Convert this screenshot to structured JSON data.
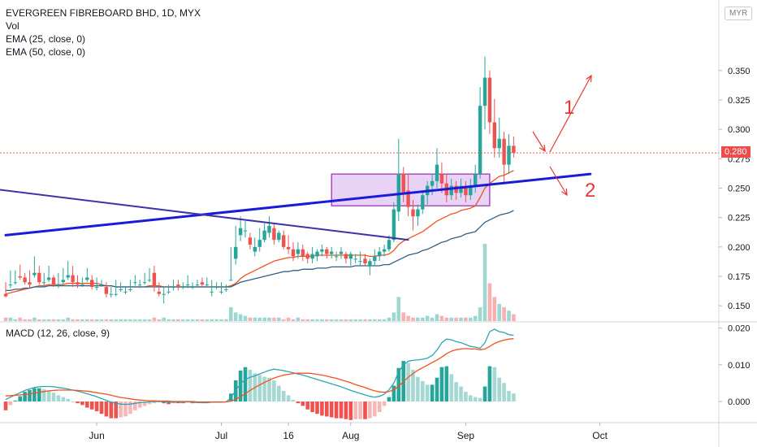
{
  "legend": {
    "title": "EVERGREEN FIBREBOARD BHD, 1D, MYX",
    "vol": "Vol",
    "ema25": "EMA (25, close, 0)",
    "ema50": "EMA (50, close, 0)",
    "macd": "MACD (12, 26, close, 9)"
  },
  "currency_badge": "MYR",
  "last_price_label": "0.280",
  "colors": {
    "up": "#26a69a",
    "down": "#ef5350",
    "ema25": "#f4511e",
    "ema50": "#2f5f8a",
    "macd_line": "#2ea5b5",
    "signal_line": "#f4511e",
    "trendline_blue": "#1a1adb",
    "trendline_purple": "#3d32a8",
    "box_fill": "#d8b4f0",
    "box_stroke": "#9c27b0",
    "annotation": "#e53935"
  },
  "annotations": {
    "label_1": "1",
    "label_2": "2"
  },
  "chart_data": [
    {
      "type": "candlestick",
      "title": "EVERGREEN FIBREBOARD BHD, 1D, MYX",
      "x_ticks": [
        "Jun",
        "Jul",
        "16",
        "Aug",
        "Sep",
        "Oct"
      ],
      "y_ticks": [
        "0.350",
        "0.325",
        "0.300",
        "0.275",
        "0.250",
        "0.225",
        "0.200",
        "0.175",
        "0.150"
      ],
      "y_range": [
        0.137,
        0.372
      ],
      "last_price": 0.28,
      "candles": [
        [
          0.16,
          0.17,
          0.158,
          0.157
        ],
        [
          0.168,
          0.18,
          0.168,
          0.165
        ],
        [
          0.17,
          0.18,
          0.17,
          0.168
        ],
        [
          0.175,
          0.185,
          0.174,
          0.172
        ],
        [
          0.174,
          0.178,
          0.17,
          0.168
        ],
        [
          0.17,
          0.18,
          0.168,
          0.165
        ],
        [
          0.176,
          0.192,
          0.178,
          0.174
        ],
        [
          0.178,
          0.184,
          0.17,
          0.168
        ],
        [
          0.17,
          0.178,
          0.17,
          0.167
        ],
        [
          0.172,
          0.184,
          0.174,
          0.17
        ],
        [
          0.174,
          0.176,
          0.168,
          0.166
        ],
        [
          0.168,
          0.178,
          0.168,
          0.165
        ],
        [
          0.17,
          0.182,
          0.172,
          0.168
        ],
        [
          0.174,
          0.188,
          0.176,
          0.172
        ],
        [
          0.176,
          0.184,
          0.17,
          0.166
        ],
        [
          0.17,
          0.176,
          0.168,
          0.165
        ],
        [
          0.168,
          0.174,
          0.168,
          0.166
        ],
        [
          0.172,
          0.182,
          0.174,
          0.17
        ],
        [
          0.172,
          0.176,
          0.166,
          0.164
        ],
        [
          0.166,
          0.174,
          0.166,
          0.163
        ],
        [
          0.168,
          0.172,
          0.168,
          0.166
        ],
        [
          0.166,
          0.17,
          0.16,
          0.157
        ],
        [
          0.16,
          0.166,
          0.16,
          0.157
        ],
        [
          0.16,
          0.172,
          0.16,
          0.158
        ],
        [
          0.164,
          0.17,
          0.164,
          0.162
        ],
        [
          0.162,
          0.166,
          0.162,
          0.16
        ],
        [
          0.164,
          0.172,
          0.164,
          0.162
        ],
        [
          0.17,
          0.176,
          0.17,
          0.167
        ],
        [
          0.168,
          0.172,
          0.168,
          0.165
        ],
        [
          0.17,
          0.178,
          0.17,
          0.168
        ],
        [
          0.172,
          0.182,
          0.172,
          0.17
        ],
        [
          0.178,
          0.184,
          0.166,
          0.162
        ],
        [
          0.162,
          0.17,
          0.16,
          0.158
        ],
        [
          0.16,
          0.166,
          0.16,
          0.152
        ],
        [
          0.162,
          0.168,
          0.162,
          0.16
        ],
        [
          0.166,
          0.172,
          0.166,
          0.163
        ],
        [
          0.168,
          0.172,
          0.166,
          0.163
        ],
        [
          0.166,
          0.17,
          0.166,
          0.164
        ],
        [
          0.168,
          0.176,
          0.168,
          0.165
        ],
        [
          0.166,
          0.17,
          0.166,
          0.164
        ],
        [
          0.168,
          0.172,
          0.168,
          0.166
        ],
        [
          0.17,
          0.174,
          0.168,
          0.166
        ],
        [
          0.168,
          0.174,
          0.168,
          0.166
        ],
        [
          0.162,
          0.172,
          0.162,
          0.158
        ],
        [
          0.166,
          0.17,
          0.166,
          0.164
        ],
        [
          0.162,
          0.17,
          0.162,
          0.16
        ],
        [
          0.164,
          0.168,
          0.164,
          0.162
        ],
        [
          0.172,
          0.2,
          0.172,
          0.172
        ],
        [
          0.19,
          0.218,
          0.2,
          0.185
        ],
        [
          0.21,
          0.226,
          0.216,
          0.205
        ],
        [
          0.214,
          0.222,
          0.214,
          0.208
        ],
        [
          0.208,
          0.212,
          0.202,
          0.198
        ],
        [
          0.196,
          0.208,
          0.2,
          0.192
        ],
        [
          0.2,
          0.216,
          0.206,
          0.196
        ],
        [
          0.206,
          0.22,
          0.214,
          0.204
        ],
        [
          0.212,
          0.226,
          0.218,
          0.208
        ],
        [
          0.216,
          0.22,
          0.206,
          0.202
        ],
        [
          0.206,
          0.214,
          0.212,
          0.204
        ],
        [
          0.21,
          0.214,
          0.2,
          0.198
        ],
        [
          0.2,
          0.21,
          0.198,
          0.194
        ],
        [
          0.198,
          0.204,
          0.192,
          0.188
        ],
        [
          0.194,
          0.204,
          0.198,
          0.19
        ],
        [
          0.198,
          0.202,
          0.192,
          0.188
        ],
        [
          0.194,
          0.196,
          0.19,
          0.186
        ],
        [
          0.19,
          0.2,
          0.194,
          0.186
        ],
        [
          0.192,
          0.198,
          0.196,
          0.188
        ],
        [
          0.196,
          0.202,
          0.198,
          0.192
        ],
        [
          0.198,
          0.2,
          0.194,
          0.19
        ],
        [
          0.194,
          0.2,
          0.196,
          0.19
        ],
        [
          0.192,
          0.196,
          0.192,
          0.188
        ],
        [
          0.194,
          0.2,
          0.196,
          0.19
        ],
        [
          0.194,
          0.196,
          0.19,
          0.186
        ],
        [
          0.19,
          0.196,
          0.194,
          0.184
        ],
        [
          0.19,
          0.194,
          0.19,
          0.186
        ],
        [
          0.188,
          0.196,
          0.188,
          0.184
        ],
        [
          0.19,
          0.194,
          0.186,
          0.184
        ],
        [
          0.184,
          0.19,
          0.188,
          0.176
        ],
        [
          0.188,
          0.198,
          0.192,
          0.184
        ],
        [
          0.192,
          0.2,
          0.196,
          0.188
        ],
        [
          0.196,
          0.202,
          0.198,
          0.192
        ],
        [
          0.198,
          0.21,
          0.206,
          0.196
        ],
        [
          0.206,
          0.238,
          0.232,
          0.204
        ],
        [
          0.23,
          0.292,
          0.262,
          0.222
        ],
        [
          0.262,
          0.268,
          0.246,
          0.238
        ],
        [
          0.248,
          0.262,
          0.234,
          0.226
        ],
        [
          0.232,
          0.24,
          0.226,
          0.214
        ],
        [
          0.226,
          0.236,
          0.232,
          0.218
        ],
        [
          0.232,
          0.248,
          0.244,
          0.228
        ],
        [
          0.244,
          0.256,
          0.252,
          0.236
        ],
        [
          0.252,
          0.262,
          0.256,
          0.244
        ],
        [
          0.256,
          0.284,
          0.27,
          0.25
        ],
        [
          0.262,
          0.272,
          0.254,
          0.246
        ],
        [
          0.254,
          0.262,
          0.244,
          0.238
        ],
        [
          0.244,
          0.258,
          0.252,
          0.24
        ],
        [
          0.252,
          0.256,
          0.246,
          0.24
        ],
        [
          0.246,
          0.258,
          0.252,
          0.242
        ],
        [
          0.252,
          0.256,
          0.244,
          0.238
        ],
        [
          0.244,
          0.258,
          0.252,
          0.24
        ],
        [
          0.252,
          0.27,
          0.262,
          0.246
        ],
        [
          0.262,
          0.336,
          0.32,
          0.258
        ],
        [
          0.32,
          0.362,
          0.344,
          0.3
        ],
        [
          0.344,
          0.35,
          0.306,
          0.296
        ],
        [
          0.306,
          0.326,
          0.284,
          0.276
        ],
        [
          0.284,
          0.31,
          0.292,
          0.276
        ],
        [
          0.292,
          0.298,
          0.27,
          0.254
        ],
        [
          0.27,
          0.296,
          0.286,
          0.262
        ],
        [
          0.286,
          0.294,
          0.28,
          0.276
        ]
      ],
      "ema25": [
        0.16,
        0.161,
        0.162,
        0.163,
        0.164,
        0.165,
        0.166,
        0.167,
        0.167,
        0.168,
        0.168,
        0.168,
        0.168,
        0.169,
        0.169,
        0.169,
        0.169,
        0.169,
        0.169,
        0.169,
        0.168,
        0.167,
        0.167,
        0.166,
        0.166,
        0.166,
        0.166,
        0.166,
        0.166,
        0.166,
        0.167,
        0.167,
        0.167,
        0.166,
        0.166,
        0.166,
        0.166,
        0.166,
        0.166,
        0.166,
        0.166,
        0.166,
        0.166,
        0.166,
        0.166,
        0.166,
        0.166,
        0.167,
        0.169,
        0.173,
        0.176,
        0.178,
        0.18,
        0.182,
        0.184,
        0.186,
        0.188,
        0.189,
        0.19,
        0.191,
        0.191,
        0.192,
        0.192,
        0.192,
        0.192,
        0.193,
        0.193,
        0.193,
        0.193,
        0.193,
        0.193,
        0.193,
        0.193,
        0.193,
        0.193,
        0.193,
        0.192,
        0.192,
        0.193,
        0.193,
        0.194,
        0.197,
        0.202,
        0.205,
        0.207,
        0.209,
        0.211,
        0.213,
        0.216,
        0.219,
        0.222,
        0.224,
        0.226,
        0.228,
        0.229,
        0.231,
        0.232,
        0.233,
        0.235,
        0.242,
        0.25,
        0.254,
        0.257,
        0.26,
        0.261,
        0.263,
        0.265
      ],
      "ema50": [
        0.163,
        0.163,
        0.164,
        0.164,
        0.165,
        0.165,
        0.166,
        0.166,
        0.166,
        0.167,
        0.167,
        0.167,
        0.167,
        0.167,
        0.167,
        0.167,
        0.167,
        0.167,
        0.167,
        0.167,
        0.167,
        0.167,
        0.167,
        0.166,
        0.166,
        0.166,
        0.166,
        0.166,
        0.166,
        0.166,
        0.166,
        0.166,
        0.166,
        0.166,
        0.166,
        0.166,
        0.166,
        0.166,
        0.166,
        0.166,
        0.166,
        0.166,
        0.166,
        0.166,
        0.166,
        0.166,
        0.166,
        0.166,
        0.168,
        0.17,
        0.171,
        0.172,
        0.173,
        0.174,
        0.175,
        0.176,
        0.177,
        0.178,
        0.179,
        0.179,
        0.18,
        0.18,
        0.181,
        0.181,
        0.181,
        0.182,
        0.182,
        0.182,
        0.183,
        0.183,
        0.183,
        0.183,
        0.183,
        0.184,
        0.184,
        0.184,
        0.184,
        0.184,
        0.184,
        0.185,
        0.185,
        0.187,
        0.189,
        0.191,
        0.193,
        0.194,
        0.195,
        0.197,
        0.198,
        0.2,
        0.202,
        0.204,
        0.205,
        0.207,
        0.208,
        0.209,
        0.211,
        0.212,
        0.213,
        0.217,
        0.221,
        0.223,
        0.225,
        0.227,
        0.228,
        0.229,
        0.231
      ],
      "volume": [
        2,
        2,
        1,
        2,
        1,
        1,
        2,
        1,
        1,
        1,
        1,
        1,
        1,
        2,
        1,
        1,
        1,
        1,
        1,
        1,
        1,
        1,
        1,
        1,
        1,
        1,
        1,
        1,
        1,
        1,
        1,
        2,
        1,
        2,
        1,
        1,
        1,
        1,
        1,
        1,
        1,
        1,
        1,
        1,
        1,
        1,
        1,
        8,
        5,
        4,
        3,
        2,
        2,
        2,
        2,
        2,
        2,
        2,
        1,
        2,
        1,
        2,
        1,
        1,
        1,
        1,
        1,
        1,
        1,
        1,
        1,
        1,
        1,
        1,
        1,
        1,
        1,
        1,
        1,
        1,
        2,
        5,
        14,
        5,
        3,
        2,
        2,
        2,
        3,
        2,
        4,
        3,
        2,
        2,
        2,
        2,
        2,
        2,
        3,
        8,
        45,
        22,
        14,
        10,
        8,
        6,
        4
      ],
      "trendlines": [
        {
          "name": "blue-uptrend",
          "from": [
            0,
            0.21
          ],
          "to": [
            122,
            0.262
          ]
        },
        {
          "name": "purple-downtrend",
          "from": [
            -2,
            0.249
          ],
          "to": [
            84,
            0.206
          ]
        }
      ],
      "consolidation_box": {
        "from_index": 68,
        "to_index": 101,
        "low": 0.235,
        "high": 0.262
      }
    },
    {
      "type": "line",
      "title": "MACD (12, 26, close, 9)",
      "y_ticks": [
        "0.020",
        "0.010",
        "0.000"
      ],
      "y_range": [
        -0.004,
        0.022
      ],
      "macd": [
        0.0005,
        0.0012,
        0.0018,
        0.0024,
        0.003,
        0.0034,
        0.0038,
        0.004,
        0.0041,
        0.0041,
        0.004,
        0.0038,
        0.0036,
        0.0034,
        0.0031,
        0.0028,
        0.0025,
        0.0021,
        0.0017,
        0.0013,
        0.0008,
        0.0003,
        -0.0002,
        -0.0005,
        -0.0007,
        -0.0008,
        -0.0007,
        -0.0005,
        -0.0003,
        -0.0002,
        -0.0001,
        0.0,
        0.0,
        -0.0001,
        -0.0002,
        -0.0002,
        -0.0002,
        -0.0002,
        -0.0001,
        -0.0002,
        -0.0003,
        -0.0003,
        -0.0003,
        -0.0002,
        -0.0002,
        -0.0002,
        -0.0001,
        0.001,
        0.003,
        0.0048,
        0.006,
        0.0066,
        0.007,
        0.0075,
        0.008,
        0.0085,
        0.0088,
        0.0086,
        0.0084,
        0.0081,
        0.0078,
        0.0075,
        0.0072,
        0.0068,
        0.0064,
        0.006,
        0.0056,
        0.0052,
        0.0048,
        0.0044,
        0.004,
        0.0035,
        0.003,
        0.0026,
        0.0022,
        0.0018,
        0.0014,
        0.0012,
        0.0014,
        0.002,
        0.0032,
        0.005,
        0.008,
        0.01,
        0.011,
        0.0112,
        0.0113,
        0.0115,
        0.0118,
        0.0125,
        0.014,
        0.016,
        0.017,
        0.0168,
        0.0163,
        0.016,
        0.0155,
        0.015,
        0.0148,
        0.0145,
        0.016,
        0.019,
        0.0197,
        0.019,
        0.0188,
        0.0182,
        0.018
      ],
      "signal": [
        0.0015,
        0.0016,
        0.0017,
        0.0018,
        0.0019,
        0.0021,
        0.0023,
        0.0025,
        0.0027,
        0.0029,
        0.003,
        0.0031,
        0.0031,
        0.0031,
        0.0031,
        0.003,
        0.0029,
        0.0028,
        0.0026,
        0.0024,
        0.0022,
        0.002,
        0.0017,
        0.0014,
        0.0011,
        0.0009,
        0.0007,
        0.0005,
        0.0004,
        0.0003,
        0.0002,
        0.0002,
        0.0001,
        0.0001,
        0.0001,
        0.0,
        0.0,
        0.0,
        0.0,
        0.0,
        -0.0001,
        -0.0001,
        -0.0001,
        -0.0001,
        -0.0001,
        -0.0001,
        -0.0001,
        0.0001,
        0.0006,
        0.0013,
        0.0021,
        0.003,
        0.0038,
        0.0045,
        0.0052,
        0.0058,
        0.0064,
        0.0068,
        0.0072,
        0.0074,
        0.0076,
        0.0077,
        0.0077,
        0.0077,
        0.0076,
        0.0074,
        0.0072,
        0.0069,
        0.0066,
        0.0063,
        0.0059,
        0.0055,
        0.0051,
        0.0046,
        0.0042,
        0.0038,
        0.0033,
        0.0029,
        0.0026,
        0.0025,
        0.0027,
        0.0032,
        0.0042,
        0.0054,
        0.0066,
        0.0076,
        0.0085,
        0.0092,
        0.0099,
        0.0106,
        0.0113,
        0.0121,
        0.013,
        0.0137,
        0.0141,
        0.0143,
        0.0144,
        0.0143,
        0.0143,
        0.0141,
        0.0143,
        0.015,
        0.0158,
        0.0163,
        0.0167,
        0.017,
        0.0171
      ]
    }
  ]
}
